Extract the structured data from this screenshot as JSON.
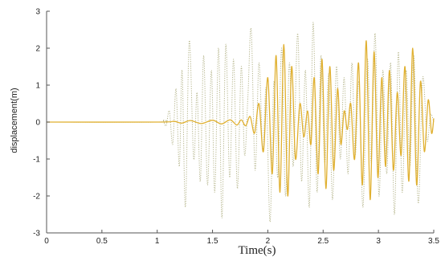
{
  "chart_data": {
    "type": "line",
    "title": "",
    "xlabel": "Time(s)",
    "ylabel": "displacement(m)",
    "xlim": [
      0,
      3.5
    ],
    "ylim": [
      -3,
      3
    ],
    "x_ticks": [
      0,
      0.5,
      1,
      1.5,
      2,
      2.5,
      3,
      3.5
    ],
    "x_tick_labels": [
      "0",
      "0.5",
      "1",
      "1.5",
      "2",
      "2.5",
      "3",
      "3.5"
    ],
    "y_ticks": [
      -3,
      -2,
      -1,
      0,
      1,
      2,
      3
    ],
    "y_tick_labels": [
      "-3",
      "-2",
      "-1",
      "0",
      "1",
      "2",
      "3"
    ],
    "grid": false,
    "legend": "none",
    "series": [
      {
        "style": "dotted",
        "color": "#b4b48a",
        "points": [
          [
            0,
            0
          ],
          [
            1.0,
            0
          ],
          [
            1.05,
            0.05
          ],
          [
            1.08,
            -0.1
          ],
          [
            1.11,
            0.3
          ],
          [
            1.14,
            -0.6
          ],
          [
            1.17,
            0.9
          ],
          [
            1.2,
            -1.2
          ],
          [
            1.225,
            1.4
          ],
          [
            1.255,
            -2.3
          ],
          [
            1.29,
            2.2
          ],
          [
            1.33,
            -1.0
          ],
          [
            1.36,
            0.8
          ],
          [
            1.39,
            -1.6
          ],
          [
            1.42,
            1.8
          ],
          [
            1.455,
            -1.7
          ],
          [
            1.49,
            1.4
          ],
          [
            1.52,
            -1.9
          ],
          [
            1.555,
            2.0
          ],
          [
            1.585,
            -2.6
          ],
          [
            1.62,
            2.1
          ],
          [
            1.655,
            -1.5
          ],
          [
            1.69,
            1.7
          ],
          [
            1.725,
            -1.8
          ],
          [
            1.76,
            1.5
          ],
          [
            1.79,
            -0.9
          ],
          [
            1.82,
            0.7
          ],
          [
            1.85,
            2.5
          ],
          [
            1.885,
            -1.3
          ],
          [
            1.92,
            1.6
          ],
          [
            1.955,
            -0.8
          ],
          [
            1.985,
            0.9
          ],
          [
            2.02,
            -2.7
          ],
          [
            2.055,
            1.1
          ],
          [
            2.09,
            -1.5
          ],
          [
            2.125,
            2.0
          ],
          [
            2.16,
            -2.0
          ],
          [
            2.195,
            1.6
          ],
          [
            2.23,
            -1.2
          ],
          [
            2.27,
            2.4
          ],
          [
            2.305,
            -1.6
          ],
          [
            2.34,
            1.4
          ],
          [
            2.375,
            -2.3
          ],
          [
            2.41,
            2.7
          ],
          [
            2.445,
            -1.9
          ],
          [
            2.48,
            1.8
          ],
          [
            2.515,
            -1.1
          ],
          [
            2.55,
            1.3
          ],
          [
            2.585,
            -2.1
          ],
          [
            2.62,
            1.5
          ],
          [
            2.655,
            -1.0
          ],
          [
            2.69,
            1.2
          ],
          [
            2.725,
            -1.4
          ],
          [
            2.76,
            1.6
          ],
          [
            2.79,
            -0.9
          ],
          [
            2.825,
            1.1
          ],
          [
            2.86,
            -2.3
          ],
          [
            2.9,
            1.7
          ],
          [
            2.935,
            -1.1
          ],
          [
            2.97,
            2.4
          ],
          [
            3.005,
            -2.0
          ],
          [
            3.04,
            1.4
          ],
          [
            3.075,
            -1.4
          ],
          [
            3.11,
            1.6
          ],
          [
            3.145,
            -2.5
          ],
          [
            3.18,
            1.9
          ],
          [
            3.215,
            -1.9
          ],
          [
            3.25,
            1.4
          ],
          [
            3.285,
            -1.2
          ],
          [
            3.32,
            1.8
          ],
          [
            3.36,
            -2.2
          ],
          [
            3.4,
            1.2
          ],
          [
            3.44,
            -0.5
          ],
          [
            3.47,
            0.2
          ],
          [
            3.5,
            0
          ]
        ]
      },
      {
        "style": "solid",
        "color": "#e0b030",
        "points": [
          [
            0,
            0
          ],
          [
            1.0,
            0
          ],
          [
            1.15,
            0.02
          ],
          [
            1.22,
            -0.03
          ],
          [
            1.3,
            0.04
          ],
          [
            1.4,
            -0.04
          ],
          [
            1.5,
            0.05
          ],
          [
            1.58,
            -0.05
          ],
          [
            1.66,
            0.06
          ],
          [
            1.72,
            -0.08
          ],
          [
            1.76,
            0.06
          ],
          [
            1.8,
            -0.1
          ],
          [
            1.84,
            0.15
          ],
          [
            1.88,
            -0.3
          ],
          [
            1.92,
            0.5
          ],
          [
            1.96,
            -0.8
          ],
          [
            2.0,
            1.2
          ],
          [
            2.04,
            -1.4
          ],
          [
            2.075,
            1.8
          ],
          [
            2.11,
            -1.9
          ],
          [
            2.145,
            2.1
          ],
          [
            2.18,
            -2.0
          ],
          [
            2.215,
            1.5
          ],
          [
            2.25,
            -1.0
          ],
          [
            2.29,
            0.5
          ],
          [
            2.325,
            -0.4
          ],
          [
            2.36,
            0.3
          ],
          [
            2.39,
            -0.6
          ],
          [
            2.42,
            1.2
          ],
          [
            2.455,
            -1.4
          ],
          [
            2.49,
            1.7
          ],
          [
            2.525,
            -1.8
          ],
          [
            2.56,
            1.5
          ],
          [
            2.595,
            -1.3
          ],
          [
            2.63,
            0.9
          ],
          [
            2.66,
            -0.6
          ],
          [
            2.69,
            0.3
          ],
          [
            2.72,
            -0.2
          ],
          [
            2.75,
            0.5
          ],
          [
            2.785,
            -1.0
          ],
          [
            2.82,
            1.6
          ],
          [
            2.855,
            -1.7
          ],
          [
            2.89,
            2.2
          ],
          [
            2.925,
            -2.1
          ],
          [
            2.96,
            1.9
          ],
          [
            2.995,
            -1.5
          ],
          [
            3.03,
            1.2
          ],
          [
            3.065,
            -1.2
          ],
          [
            3.1,
            1.4
          ],
          [
            3.135,
            -1.3
          ],
          [
            3.17,
            0.8
          ],
          [
            3.205,
            -0.9
          ],
          [
            3.24,
            1.5
          ],
          [
            3.275,
            -1.6
          ],
          [
            3.31,
            2.0
          ],
          [
            3.345,
            -1.7
          ],
          [
            3.38,
            1.1
          ],
          [
            3.415,
            -0.8
          ],
          [
            3.45,
            0.6
          ],
          [
            3.48,
            -0.3
          ],
          [
            3.5,
            0.1
          ]
        ]
      }
    ]
  }
}
